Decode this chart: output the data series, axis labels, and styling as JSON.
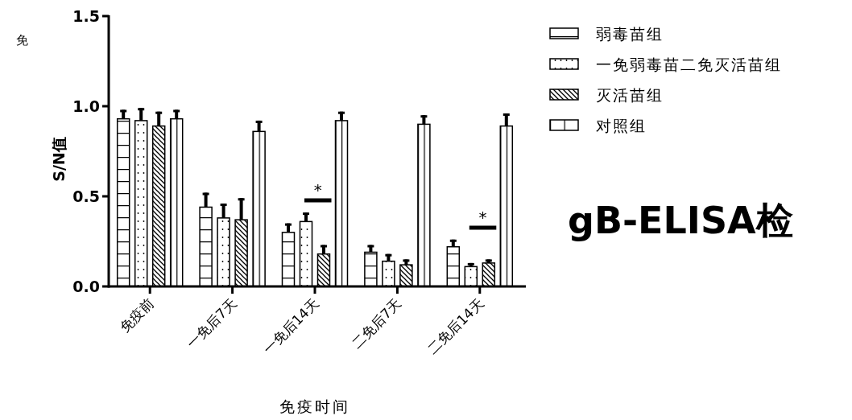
{
  "chart_data": {
    "type": "bar",
    "xlabel": "免疫时间",
    "ylabel": "S/N值",
    "categories": [
      "免疫前",
      "一免后7天",
      "一免后14天",
      "二免后7天",
      "二免后14天"
    ],
    "series": [
      {
        "name": "弱毒苗组",
        "color": "#000000",
        "values": [
          0.93,
          0.44,
          0.3,
          0.19,
          0.22
        ],
        "errors": [
          [
            0.93,
            0.98
          ],
          [
            0.44,
            0.52
          ],
          [
            0.3,
            0.35
          ],
          [
            0.19,
            0.23
          ],
          [
            0.22,
            0.26
          ]
        ]
      },
      {
        "name": "一免弱毒苗二免灭活苗组",
        "color": "#000000",
        "values": [
          0.92,
          0.38,
          0.36,
          0.14,
          0.11
        ],
        "errors": [
          [
            0.92,
            0.99
          ],
          [
            0.38,
            0.46
          ],
          [
            0.36,
            0.41
          ],
          [
            0.14,
            0.18
          ],
          [
            0.11,
            0.13
          ]
        ]
      },
      {
        "name": "灭活苗组",
        "color": "#000000",
        "values": [
          0.89,
          0.37,
          0.18,
          0.12,
          0.13
        ],
        "errors": [
          [
            0.89,
            0.97
          ],
          [
            0.37,
            0.49
          ],
          [
            0.18,
            0.23
          ],
          [
            0.12,
            0.15
          ],
          [
            0.13,
            0.15
          ]
        ]
      },
      {
        "name": "对照组",
        "color": "#000000",
        "values": [
          0.93,
          0.86,
          0.92,
          0.9,
          0.89
        ],
        "errors": [
          [
            0.93,
            0.98
          ],
          [
            0.86,
            0.92
          ],
          [
            0.92,
            0.97
          ],
          [
            0.9,
            0.95
          ],
          [
            0.89,
            0.96
          ]
        ]
      }
    ],
    "ylim": [
      0,
      1.5
    ],
    "yticks": [
      {
        "value": 0,
        "label": "0.0"
      },
      {
        "value": 0.5,
        "label": "0.5"
      },
      {
        "value": 1,
        "label": "1.0"
      },
      {
        "value": 1.5,
        "label": "1.5"
      }
    ],
    "legend": "right",
    "grid": false,
    "annotations": [
      "*",
      "*",
      "gB-ELISA检",
      "免"
    ]
  }
}
